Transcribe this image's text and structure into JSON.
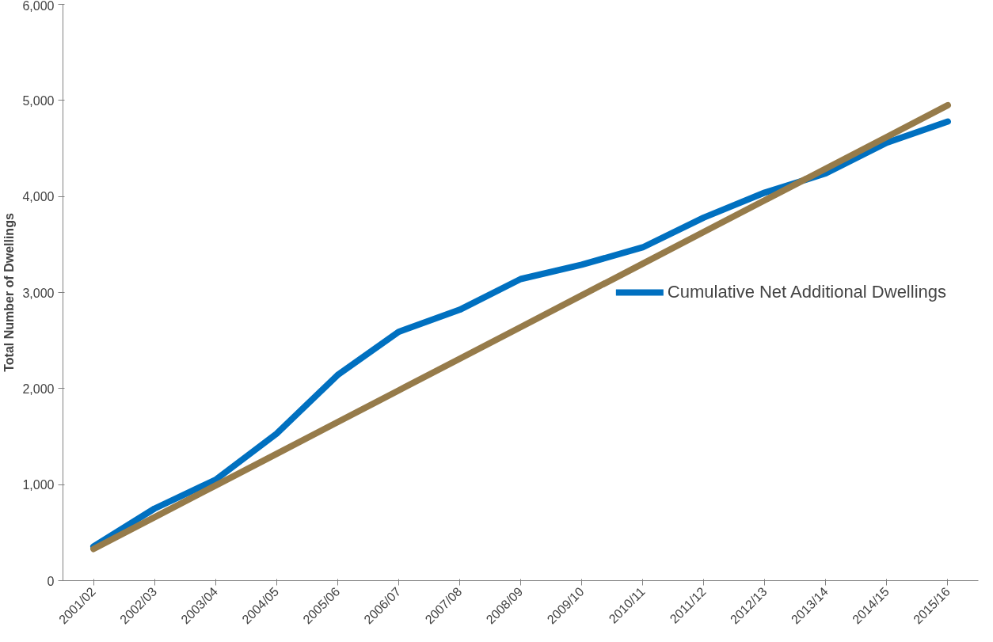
{
  "chart_data": {
    "type": "line",
    "ylabel": "Total Number of Dwellings",
    "categories": [
      "2001/02",
      "2002/03",
      "2003/04",
      "2004/05",
      "2005/06",
      "2006/07",
      "2007/08",
      "2008/09",
      "2009/10",
      "2010/11",
      "2011/12",
      "2012/13",
      "2013/14",
      "2014/15",
      "2015/16"
    ],
    "series": [
      {
        "name": "Cumulative Net Additional Dwellings",
        "color": "#0070c0",
        "values": [
          355,
          750,
          1050,
          1530,
          2140,
          2590,
          2820,
          3140,
          3290,
          3470,
          3780,
          4040,
          4240,
          4560,
          4780
        ]
      },
      {
        "color": "#967b4a",
        "values": [
          330,
          660,
          990,
          1320,
          1650,
          1980,
          2310,
          2640,
          2970,
          3300,
          3630,
          3960,
          4290,
          4620,
          4950
        ]
      }
    ],
    "ylim": [
      0,
      6000
    ],
    "yticks": [
      {
        "value": 0,
        "label": "0"
      },
      {
        "value": 1000,
        "label": "1,000"
      },
      {
        "value": 2000,
        "label": "2,000"
      },
      {
        "value": 3000,
        "label": "3,000"
      },
      {
        "value": 4000,
        "label": "4,000"
      },
      {
        "value": 5000,
        "label": "5,000"
      },
      {
        "value": 6000,
        "label": "6,000"
      }
    ],
    "grid": false,
    "legend": "right",
    "marker": "none",
    "line_style": "solid"
  }
}
